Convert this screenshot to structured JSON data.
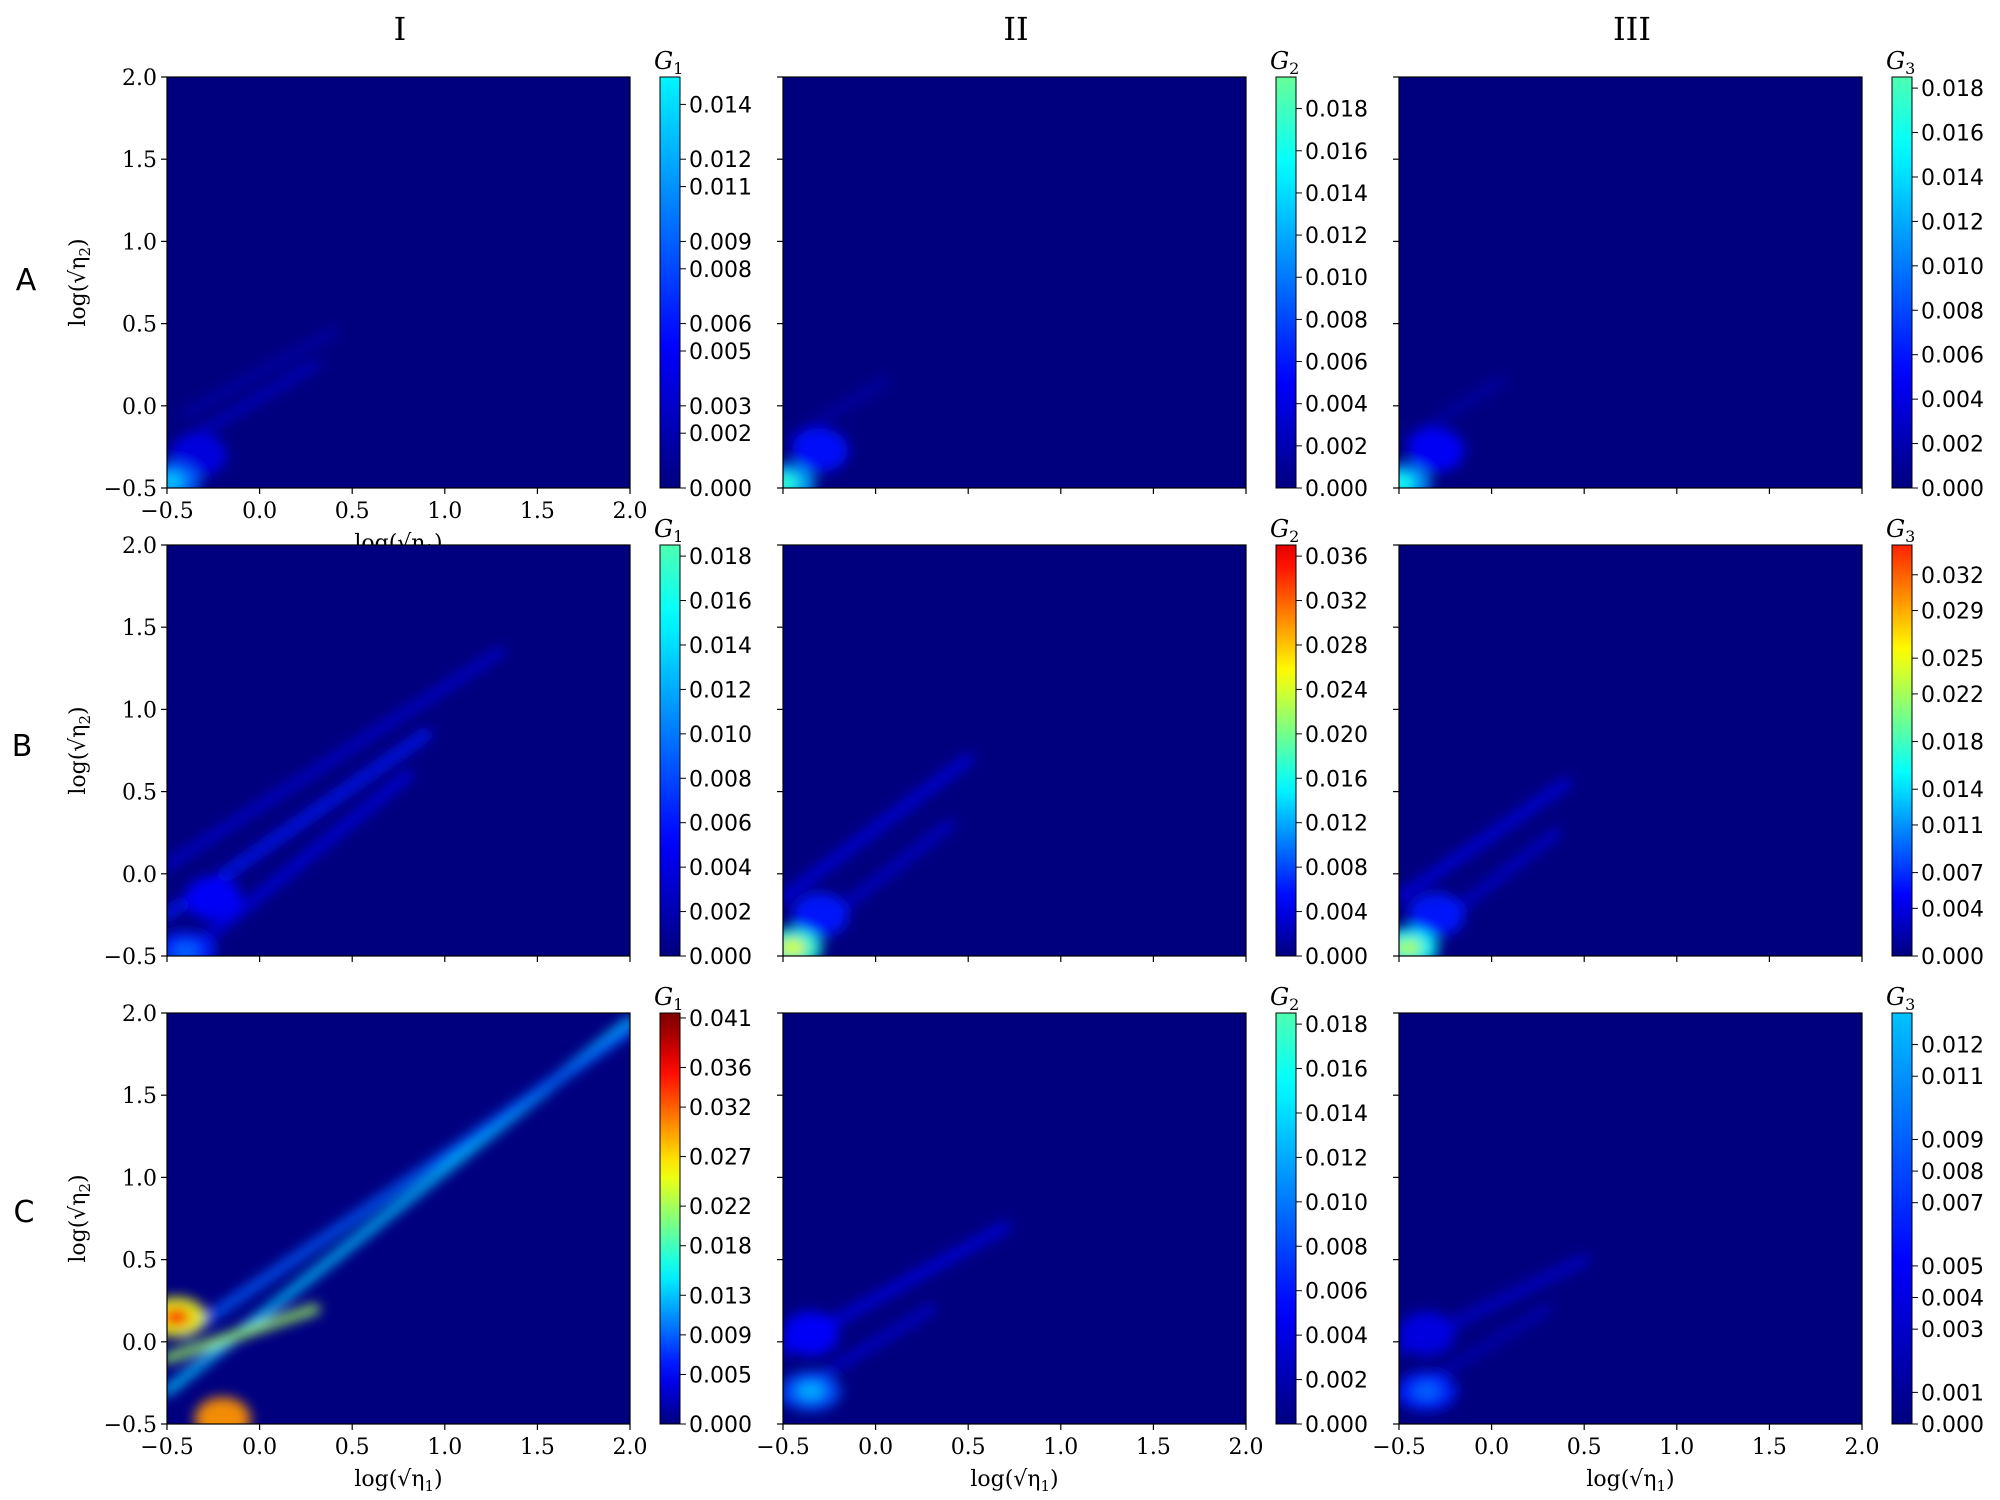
{
  "column_labels": [
    "I",
    "II",
    "III"
  ],
  "row_labels": [
    "A",
    "B",
    "C"
  ],
  "x_axis_label": "log(√η1)",
  "y_axis_label": "log(√η2)",
  "colormap": "jet",
  "colormap_stops": [
    "#00007f",
    "#0000ff",
    "#007fff",
    "#00ffff",
    "#7fff7f",
    "#ffff00",
    "#ff7f00",
    "#ff0000",
    "#7f0000"
  ],
  "chart_data": [
    {
      "type": "heatmap",
      "row": "A",
      "column": "I",
      "colorbar_label": "G1",
      "colorbar_max": 0.015,
      "colorbar_full_scale": 0.041,
      "colorbar_ticks": [
        "0.000",
        "0.002",
        "0.003",
        "0.005",
        "0.006",
        "0.008",
        "0.009",
        "0.011",
        "0.012",
        "0.014"
      ],
      "xlim": [
        -0.5,
        2.0
      ],
      "ylim": [
        -0.5,
        2.0
      ],
      "xticks": [
        "−0.5",
        "0.0",
        "0.5",
        "1.0",
        "1.5",
        "2.0"
      ],
      "yticks": [
        "−0.5",
        "0.0",
        "0.5",
        "1.0",
        "1.5",
        "2.0"
      ],
      "features": {
        "corner": {
          "x": -0.48,
          "y": -0.46,
          "peak": 0.013
        },
        "blob": {
          "x": -0.33,
          "y": -0.3,
          "peak": 0.004
        },
        "streaks": [
          {
            "x0": -0.45,
            "y0": -0.25,
            "x1": 0.3,
            "y1": 0.25,
            "peak": 0.0025
          },
          {
            "x0": -0.4,
            "y0": -0.05,
            "x1": 0.4,
            "y1": 0.45,
            "peak": 0.0015
          }
        ]
      }
    },
    {
      "type": "heatmap",
      "row": "A",
      "column": "II",
      "colorbar_label": "G2",
      "colorbar_max": 0.0195,
      "colorbar_full_scale": 0.041,
      "colorbar_ticks": [
        "0.000",
        "0.002",
        "0.004",
        "0.006",
        "0.008",
        "0.010",
        "0.012",
        "0.014",
        "0.016",
        "0.018"
      ],
      "xlim": [
        -0.5,
        2.0
      ],
      "ylim": [
        -0.5,
        2.0
      ],
      "xticks": [],
      "yticks": [],
      "features": {
        "corner": {
          "x": -0.49,
          "y": -0.47,
          "peak": 0.017
        },
        "blob": {
          "x": -0.3,
          "y": -0.27,
          "peak": 0.0055
        },
        "streaks": [
          {
            "x0": -0.45,
            "y0": -0.2,
            "x1": 0.05,
            "y1": 0.15,
            "peak": 0.0015
          }
        ]
      }
    },
    {
      "type": "heatmap",
      "row": "A",
      "column": "III",
      "colorbar_label": "G3",
      "colorbar_max": 0.0185,
      "colorbar_full_scale": 0.041,
      "colorbar_ticks": [
        "0.000",
        "0.002",
        "0.004",
        "0.006",
        "0.008",
        "0.010",
        "0.012",
        "0.014",
        "0.016",
        "0.018"
      ],
      "xlim": [
        -0.5,
        2.0
      ],
      "ylim": [
        -0.5,
        2.0
      ],
      "xticks": [],
      "yticks": [],
      "features": {
        "corner": {
          "x": -0.49,
          "y": -0.47,
          "peak": 0.016
        },
        "blob": {
          "x": -0.3,
          "y": -0.27,
          "peak": 0.005
        },
        "streaks": [
          {
            "x0": -0.45,
            "y0": -0.2,
            "x1": 0.05,
            "y1": 0.15,
            "peak": 0.0015
          }
        ]
      }
    },
    {
      "type": "heatmap",
      "row": "B",
      "column": "I",
      "colorbar_label": "G1",
      "colorbar_max": 0.0185,
      "colorbar_full_scale": 0.041,
      "colorbar_ticks": [
        "0.000",
        "0.002",
        "0.004",
        "0.006",
        "0.008",
        "0.010",
        "0.012",
        "0.014",
        "0.016",
        "0.018"
      ],
      "xlim": [
        -0.5,
        2.0
      ],
      "ylim": [
        -0.5,
        2.0
      ],
      "xticks": [],
      "yticks": [
        "−0.5",
        "0.0",
        "0.5",
        "1.0",
        "1.5",
        "2.0"
      ],
      "features": {
        "corner": {
          "x": -0.4,
          "y": -0.47,
          "peak": 0.009
        },
        "blob": {
          "x": -0.25,
          "y": -0.15,
          "peak": 0.005
        },
        "streaks": [
          {
            "x0": -0.5,
            "y0": -0.25,
            "x1": 0.9,
            "y1": 0.85,
            "peak": 0.006
          },
          {
            "x0": -0.5,
            "y0": 0.05,
            "x1": 1.3,
            "y1": 1.35,
            "peak": 0.003
          },
          {
            "x0": -0.35,
            "y0": -0.45,
            "x1": 0.8,
            "y1": 0.6,
            "peak": 0.004
          }
        ]
      }
    },
    {
      "type": "heatmap",
      "row": "B",
      "column": "II",
      "colorbar_label": "G2",
      "colorbar_max": 0.037,
      "colorbar_full_scale": 0.041,
      "colorbar_ticks": [
        "0.000",
        "0.004",
        "0.008",
        "0.012",
        "0.016",
        "0.020",
        "0.024",
        "0.028",
        "0.032",
        "0.036"
      ],
      "xlim": [
        -0.5,
        2.0
      ],
      "ylim": [
        -0.5,
        2.0
      ],
      "xticks": [],
      "yticks": [],
      "features": {
        "corner": {
          "x": -0.45,
          "y": -0.45,
          "peak": 0.024
        },
        "blob": {
          "x": -0.3,
          "y": -0.25,
          "peak": 0.006
        },
        "streaks": [
          {
            "x0": -0.5,
            "y0": -0.15,
            "x1": 0.5,
            "y1": 0.7,
            "peak": 0.004
          },
          {
            "x0": -0.4,
            "y0": -0.4,
            "x1": 0.4,
            "y1": 0.3,
            "peak": 0.003
          }
        ]
      }
    },
    {
      "type": "heatmap",
      "row": "B",
      "column": "III",
      "colorbar_label": "G3",
      "colorbar_max": 0.0345,
      "colorbar_full_scale": 0.041,
      "colorbar_ticks": [
        "0.000",
        "0.004",
        "0.007",
        "0.011",
        "0.014",
        "0.018",
        "0.022",
        "0.025",
        "0.029",
        "0.032"
      ],
      "xlim": [
        -0.5,
        2.0
      ],
      "ylim": [
        -0.5,
        2.0
      ],
      "xticks": [],
      "yticks": [],
      "features": {
        "corner": {
          "x": -0.45,
          "y": -0.45,
          "peak": 0.022
        },
        "blob": {
          "x": -0.3,
          "y": -0.25,
          "peak": 0.006
        },
        "streaks": [
          {
            "x0": -0.5,
            "y0": -0.15,
            "x1": 0.4,
            "y1": 0.55,
            "peak": 0.004
          },
          {
            "x0": -0.4,
            "y0": -0.4,
            "x1": 0.35,
            "y1": 0.25,
            "peak": 0.003
          }
        ]
      }
    },
    {
      "type": "heatmap",
      "row": "C",
      "column": "I",
      "colorbar_label": "G1",
      "colorbar_max": 0.0415,
      "colorbar_full_scale": 0.041,
      "colorbar_ticks": [
        "0.000",
        "0.005",
        "0.009",
        "0.013",
        "0.018",
        "0.022",
        "0.027",
        "0.032",
        "0.036",
        "0.041"
      ],
      "xlim": [
        -0.5,
        2.0
      ],
      "ylim": [
        -0.5,
        2.0
      ],
      "xticks": [
        "−0.5",
        "0.0",
        "0.5",
        "1.0",
        "1.5",
        "2.0"
      ],
      "yticks": [
        "−0.5",
        "0.0",
        "0.5",
        "1.0",
        "1.5",
        "2.0"
      ],
      "features": {
        "corner": {
          "x": -0.45,
          "y": 0.15,
          "peak": 0.036
        },
        "blob": {
          "x": -0.2,
          "y": -0.47,
          "peak": 0.03
        },
        "streaks": [
          {
            "x0": -0.5,
            "y0": -0.3,
            "x1": 2.0,
            "y1": 1.95,
            "peak": 0.013
          },
          {
            "x0": -0.4,
            "y0": 0.05,
            "x1": 2.0,
            "y1": 1.9,
            "peak": 0.009
          },
          {
            "x0": -0.5,
            "y0": -0.1,
            "x1": 0.3,
            "y1": 0.2,
            "peak": 0.022
          }
        ]
      }
    },
    {
      "type": "heatmap",
      "row": "C",
      "column": "II",
      "colorbar_label": "G2",
      "colorbar_max": 0.0185,
      "colorbar_full_scale": 0.041,
      "colorbar_ticks": [
        "0.000",
        "0.002",
        "0.004",
        "0.006",
        "0.008",
        "0.010",
        "0.012",
        "0.014",
        "0.016",
        "0.018"
      ],
      "xlim": [
        -0.5,
        2.0
      ],
      "ylim": [
        -0.5,
        2.0
      ],
      "xticks": [
        "−0.5",
        "0.0",
        "0.5",
        "1.0",
        "1.5",
        "2.0"
      ],
      "yticks": [],
      "features": {
        "corner": {
          "x": -0.35,
          "y": -0.3,
          "peak": 0.012
        },
        "blob": {
          "x": -0.35,
          "y": 0.05,
          "peak": 0.005
        },
        "streaks": [
          {
            "x0": -0.5,
            "y0": -0.05,
            "x1": 0.7,
            "y1": 0.7,
            "peak": 0.004
          },
          {
            "x0": -0.5,
            "y0": -0.35,
            "x1": 0.3,
            "y1": 0.2,
            "peak": 0.003
          }
        ]
      }
    },
    {
      "type": "heatmap",
      "row": "C",
      "column": "III",
      "colorbar_label": "G3",
      "colorbar_max": 0.013,
      "colorbar_full_scale": 0.041,
      "colorbar_ticks": [
        "0.000",
        "0.001",
        "0.003",
        "0.004",
        "0.005",
        "0.007",
        "0.008",
        "0.009",
        "0.011",
        "0.012"
      ],
      "xlim": [
        -0.5,
        2.0
      ],
      "ylim": [
        -0.5,
        2.0
      ],
      "xticks": [
        "−0.5",
        "0.0",
        "0.5",
        "1.0",
        "1.5",
        "2.0"
      ],
      "yticks": [],
      "features": {
        "corner": {
          "x": -0.35,
          "y": -0.3,
          "peak": 0.009
        },
        "blob": {
          "x": -0.35,
          "y": 0.05,
          "peak": 0.004
        },
        "streaks": [
          {
            "x0": -0.5,
            "y0": -0.05,
            "x1": 0.5,
            "y1": 0.5,
            "peak": 0.003
          },
          {
            "x0": -0.5,
            "y0": -0.35,
            "x1": 0.3,
            "y1": 0.2,
            "peak": 0.002
          }
        ]
      }
    }
  ]
}
